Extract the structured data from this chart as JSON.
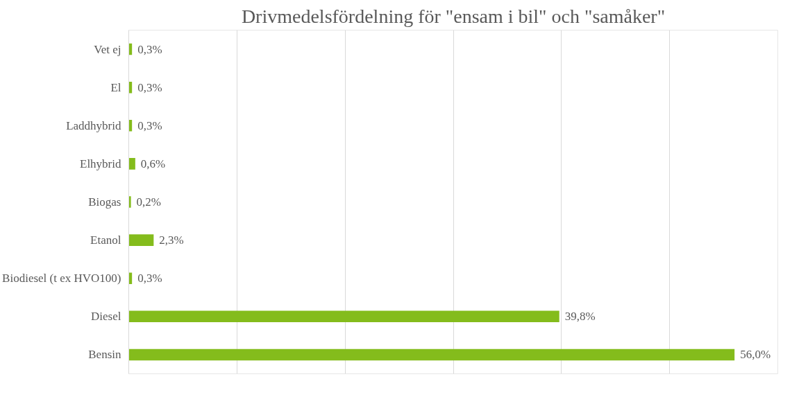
{
  "chart_data": {
    "type": "bar",
    "orientation": "horizontal",
    "title": "Drivmedelsfördelning för \"ensam i bil\" och \"samåker\"",
    "categories": [
      "Vet ej",
      "El",
      "Laddhybrid",
      "Elhybrid",
      "Biogas",
      "Etanol",
      "Biodiesel (t ex HVO100)",
      "Diesel",
      "Bensin"
    ],
    "values": [
      0.3,
      0.3,
      0.3,
      0.6,
      0.2,
      2.3,
      0.3,
      39.8,
      56.0
    ],
    "value_labels": [
      "0,3%",
      "0,3%",
      "0,3%",
      "0,6%",
      "0,2%",
      "2,3%",
      "0,3%",
      "39,8%",
      "56,0%"
    ],
    "color": "#84bc1c",
    "xlim": [
      0,
      60
    ],
    "xticks": [
      {
        "value": 0,
        "label": null
      },
      {
        "value": 10,
        "label": null
      },
      {
        "value": 20,
        "label": null
      },
      {
        "value": 30,
        "label": null
      },
      {
        "value": 40,
        "label": null
      },
      {
        "value": 50,
        "label": null
      },
      {
        "value": 60,
        "label": null
      }
    ],
    "grid": "x",
    "tick_labels": "y"
  }
}
